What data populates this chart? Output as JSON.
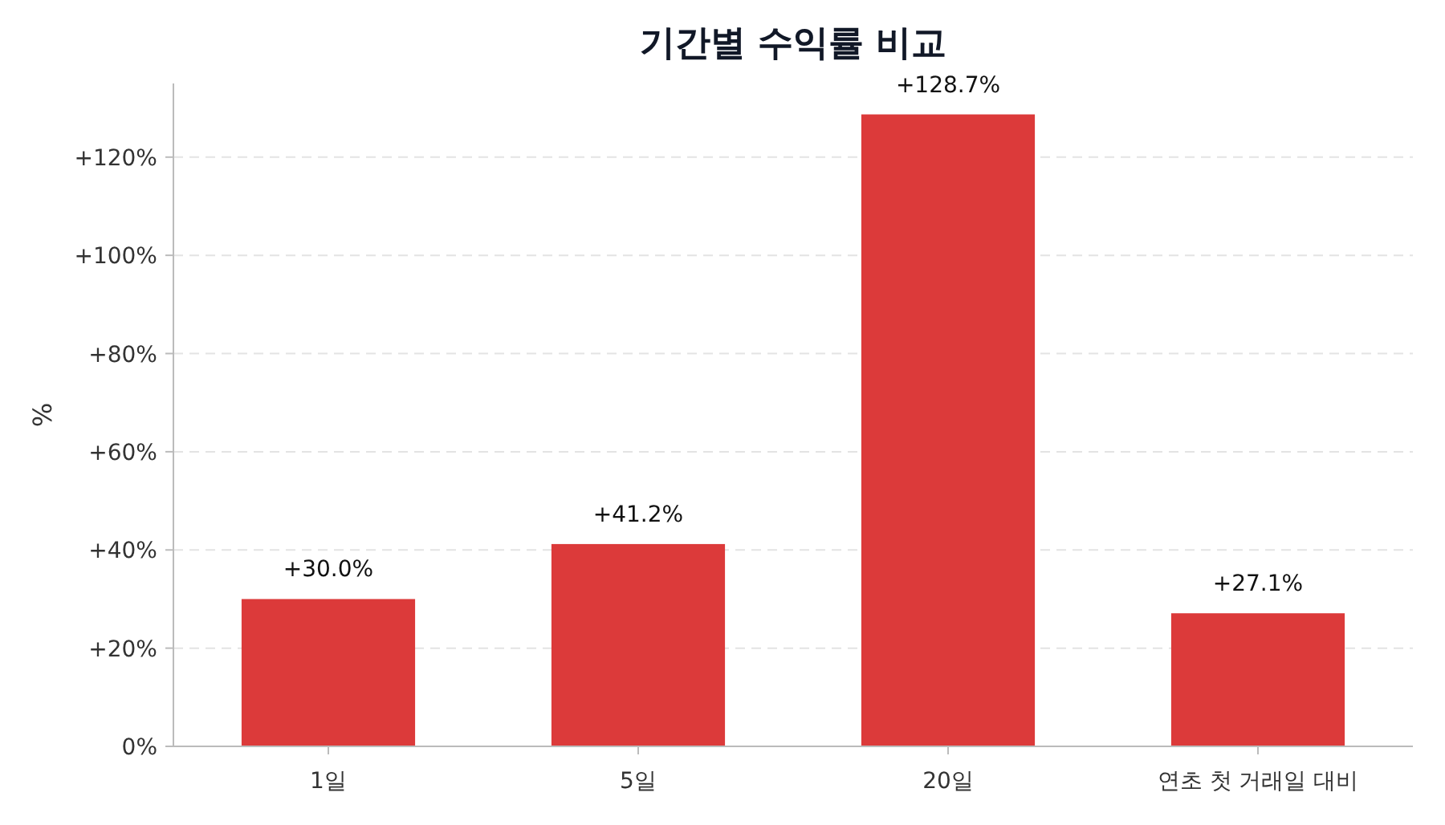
{
  "chart_data": {
    "type": "bar",
    "title": "기간별 수익률 비교",
    "ylabel": "%",
    "categories": [
      "1일",
      "5일",
      "20일",
      "연초 첫 거래일 대비"
    ],
    "values": [
      30.0,
      41.2,
      128.7,
      27.1
    ],
    "color": "#dc3a3a",
    "value_labels": [
      "+30.0%",
      "+41.2%",
      "+128.7%",
      "+27.1%"
    ],
    "ylim": [
      0,
      135
    ],
    "yticks": [
      {
        "value": 0,
        "label": "0%"
      },
      {
        "value": 20,
        "label": "+20%"
      },
      {
        "value": 40,
        "label": "+40%"
      },
      {
        "value": 60,
        "label": "+60%"
      },
      {
        "value": 80,
        "label": "+80%"
      },
      {
        "value": 100,
        "label": "+100%"
      },
      {
        "value": 120,
        "label": "+120%"
      }
    ],
    "grid": "y"
  }
}
